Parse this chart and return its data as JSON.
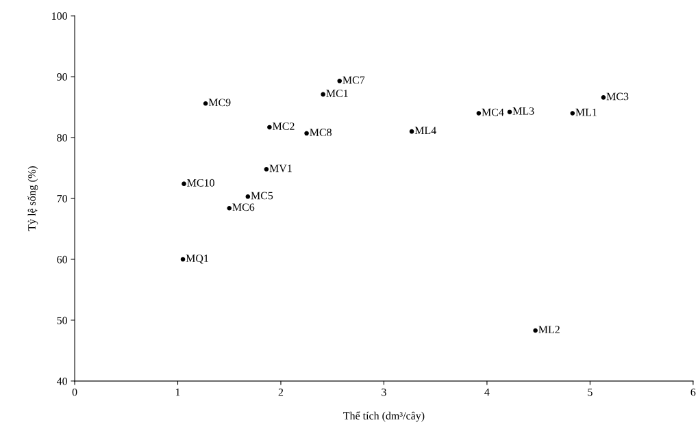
{
  "chart_data": {
    "type": "scatter",
    "xlabel": "Thể tích (dm³/cây)",
    "ylabel": "Tỷ lệ sống (%)",
    "xlim": [
      0,
      6
    ],
    "xticks": [
      0,
      1,
      2,
      3,
      4,
      5,
      6
    ],
    "ylim": [
      40,
      100
    ],
    "yticks": [
      40,
      50,
      60,
      70,
      80,
      90,
      100
    ],
    "grid": false,
    "marker": "circle",
    "series": [
      {
        "color": "#000000",
        "x": [
          1.27,
          2.57,
          2.41,
          1.89,
          2.25,
          3.27,
          3.92,
          4.22,
          4.83,
          5.13,
          1.86,
          1.06,
          1.68,
          1.5,
          1.05,
          4.47
        ],
        "values": [
          85.6,
          89.3,
          87.1,
          81.7,
          80.7,
          81.0,
          84.0,
          84.2,
          84.0,
          86.6,
          74.8,
          72.4,
          70.3,
          68.4,
          60.0,
          48.3
        ],
        "value_labels": [
          "MC9",
          "MC7",
          "MC1",
          "MC2",
          "MC8",
          "ML4",
          "MC4",
          "ML3",
          "ML1",
          "MC3",
          "MV1",
          "MC10",
          "MC5",
          "MC6",
          "MQ1",
          "ML2"
        ]
      }
    ]
  }
}
